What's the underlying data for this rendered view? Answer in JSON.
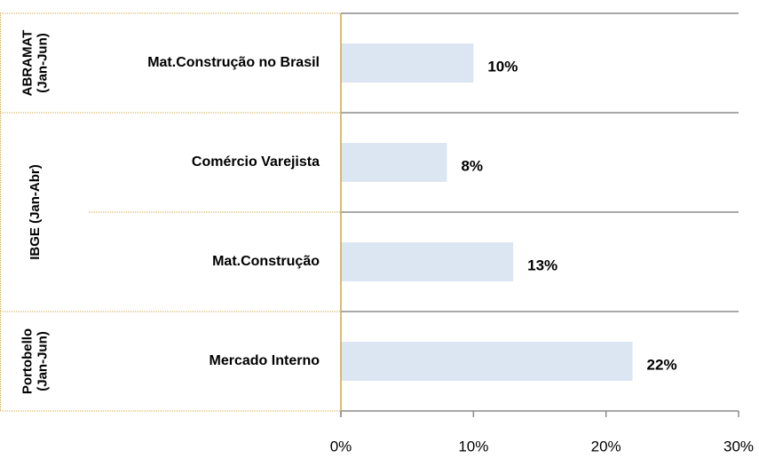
{
  "chart_data": {
    "type": "bar",
    "orientation": "horizontal",
    "color": "#dce6f2",
    "groups": [
      {
        "label": [
          "ABRAMAT",
          "(Jan-Jun)"
        ],
        "categories": [
          "Mat.Construção no Brasil"
        ],
        "values": [
          10
        ],
        "value_labels": [
          "10%"
        ]
      },
      {
        "label": [
          "IBGE (Jan-Abr)"
        ],
        "categories": [
          "Comércio Varejista",
          "Mat.Construção"
        ],
        "values": [
          8,
          13
        ],
        "value_labels": [
          "8%",
          "13%"
        ]
      },
      {
        "label": [
          "Portobello",
          "(Jan-Jun)"
        ],
        "categories": [
          "Mercado Interno"
        ],
        "values": [
          22
        ],
        "value_labels": [
          "22%"
        ]
      }
    ],
    "xlim": [
      0,
      30
    ],
    "xticks": [
      {
        "value": 0,
        "label": "0%"
      },
      {
        "value": 10,
        "label": "10%"
      },
      {
        "value": 20,
        "label": "20%"
      },
      {
        "value": 30,
        "label": "30%"
      }
    ]
  }
}
